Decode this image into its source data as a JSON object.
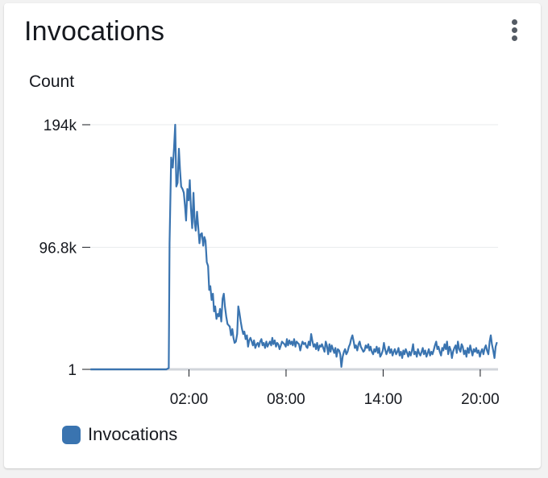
{
  "widget": {
    "title": "Invocations",
    "menu_icon": "more-vertical-icon"
  },
  "colors": {
    "series": "#3a74b0",
    "grid": "#e9ebed",
    "baseline": "#d1d5db"
  },
  "chart_data": {
    "type": "line",
    "title": "Invocations",
    "ylabel": "Count",
    "xlabel": "",
    "y_ticks": [
      {
        "label": "194k",
        "value": 194000
      },
      {
        "label": "96.8k",
        "value": 96800
      },
      {
        "label": "1",
        "value": 1
      }
    ],
    "x_ticks": [
      {
        "label": "02:00",
        "hour": 2
      },
      {
        "label": "08:00",
        "hour": 8
      },
      {
        "label": "14:00",
        "hour": 14
      },
      {
        "label": "20:00",
        "hour": 20
      }
    ],
    "xlim": [
      -4.1,
      21.1
    ],
    "ylim": [
      1,
      194000
    ],
    "grid": true,
    "legend_position": "bottom-left",
    "series": [
      {
        "name": "Invocations",
        "x": [
          -4.05,
          -2.5,
          -1.0,
          0.6,
          0.75,
          0.8,
          0.9,
          1.0,
          1.08,
          1.15,
          1.22,
          1.3,
          1.38,
          1.45,
          1.52,
          1.6,
          1.68,
          1.75,
          1.82,
          1.9,
          1.98,
          2.05,
          2.12,
          2.2,
          2.28,
          2.35,
          2.42,
          2.5,
          2.58,
          2.65,
          2.72,
          2.8,
          2.88,
          2.95,
          3.02,
          3.1,
          3.18,
          3.25,
          3.32,
          3.4,
          3.48,
          3.55,
          3.62,
          3.7,
          3.78,
          3.85,
          3.92,
          4.0,
          4.08,
          4.15,
          4.22,
          4.3,
          4.38,
          4.45,
          4.52,
          4.6,
          4.68,
          4.75,
          4.82,
          4.9,
          4.98,
          5.05,
          5.12,
          5.2,
          5.28,
          5.35,
          5.42,
          5.5,
          5.58,
          5.65,
          5.72,
          5.8,
          5.88,
          5.95,
          6.02,
          6.1,
          6.18,
          6.25,
          6.32,
          6.4,
          6.48,
          6.55,
          6.62,
          6.7,
          6.78,
          6.85,
          6.92,
          7.0,
          7.08,
          7.15,
          7.22,
          7.3,
          7.38,
          7.45,
          7.52,
          7.6,
          7.68,
          7.75,
          7.82,
          7.9,
          7.98,
          8.05,
          8.12,
          8.2,
          8.28,
          8.35,
          8.42,
          8.5,
          8.58,
          8.65,
          8.72,
          8.8,
          8.88,
          8.95,
          9.02,
          9.1,
          9.18,
          9.25,
          9.32,
          9.4,
          9.48,
          9.55,
          9.62,
          9.7,
          9.78,
          9.85,
          9.92,
          10.0,
          10.08,
          10.15,
          10.22,
          10.3,
          10.38,
          10.45,
          10.52,
          10.6,
          10.68,
          10.75,
          10.82,
          10.9,
          10.98,
          11.05,
          11.12,
          11.2,
          11.28,
          11.35,
          11.42,
          11.5,
          11.58,
          11.65,
          11.72,
          11.8,
          11.88,
          11.95,
          12.02,
          12.1,
          12.18,
          12.25,
          12.32,
          12.4,
          12.48,
          12.55,
          12.62,
          12.7,
          12.78,
          12.85,
          12.92,
          13.0,
          13.08,
          13.15,
          13.22,
          13.3,
          13.38,
          13.45,
          13.52,
          13.6,
          13.68,
          13.75,
          13.82,
          13.9,
          13.98,
          14.05,
          14.12,
          14.2,
          14.28,
          14.35,
          14.42,
          14.5,
          14.58,
          14.65,
          14.72,
          14.8,
          14.88,
          14.95,
          15.02,
          15.1,
          15.18,
          15.25,
          15.32,
          15.4,
          15.48,
          15.55,
          15.62,
          15.7,
          15.78,
          15.85,
          15.92,
          16.0,
          16.08,
          16.15,
          16.22,
          16.3,
          16.38,
          16.45,
          16.52,
          16.6,
          16.68,
          16.75,
          16.82,
          16.9,
          16.98,
          17.05,
          17.12,
          17.2,
          17.28,
          17.35,
          17.42,
          17.5,
          17.58,
          17.65,
          17.72,
          17.8,
          17.88,
          17.95,
          18.02,
          18.1,
          18.18,
          18.25,
          18.32,
          18.4,
          18.48,
          18.55,
          18.62,
          18.7,
          18.78,
          18.85,
          18.92,
          19.0,
          19.08,
          19.15,
          19.22,
          19.3,
          19.38,
          19.45,
          19.52,
          19.6,
          19.68,
          19.75,
          19.82,
          19.9,
          19.98,
          20.05,
          20.12,
          20.2,
          20.28,
          20.35,
          20.42,
          20.5,
          20.58,
          20.65,
          20.72,
          20.8,
          20.88,
          20.95,
          21.02
        ],
        "values": [
          1,
          1,
          1,
          1,
          1000,
          100000,
          168000,
          160000,
          176000,
          194000,
          145000,
          148000,
          175000,
          158000,
          145000,
          143000,
          140000,
          130000,
          118000,
          143000,
          134000,
          150000,
          128000,
          112000,
          140000,
          117000,
          110000,
          125000,
          112000,
          100000,
          107000,
          108000,
          98000,
          105000,
          102000,
          85000,
          82000,
          63000,
          66000,
          55000,
          60000,
          46000,
          50000,
          40000,
          44000,
          42000,
          48000,
          38000,
          56000,
          60000,
          50000,
          42000,
          36000,
          35000,
          34000,
          27000,
          32000,
          25000,
          21000,
          22000,
          28000,
          50000,
          45000,
          38000,
          32000,
          28000,
          30000,
          24000,
          27000,
          18000,
          23000,
          25000,
          22000,
          19000,
          23000,
          17000,
          20000,
          21000,
          18000,
          22000,
          24000,
          19000,
          21000,
          17000,
          22000,
          18000,
          20000,
          22000,
          19000,
          25000,
          20000,
          23000,
          18000,
          21000,
          20000,
          16000,
          19000,
          22000,
          21000,
          20000,
          18000,
          24000,
          19000,
          23000,
          20000,
          22000,
          19000,
          24000,
          18000,
          22000,
          21000,
          20000,
          15000,
          19000,
          22000,
          20000,
          21000,
          18000,
          17000,
          22000,
          19000,
          28000,
          23000,
          18000,
          20000,
          16000,
          21000,
          15000,
          19000,
          18000,
          20000,
          17000,
          14000,
          22000,
          19000,
          12000,
          20000,
          14000,
          19000,
          16000,
          13000,
          17000,
          10000,
          16000,
          15000,
          12000,
          2000,
          10000,
          14000,
          16000,
          12000,
          14000,
          18000,
          20000,
          24000,
          27000,
          22000,
          17000,
          19000,
          15000,
          20000,
          22000,
          18000,
          16000,
          14000,
          15000,
          19000,
          17000,
          20000,
          15000,
          18000,
          14000,
          12000,
          16000,
          14000,
          18000,
          13000,
          17000,
          10000,
          12000,
          15000,
          21000,
          16000,
          12000,
          15000,
          18000,
          13000,
          16000,
          11000,
          14000,
          16000,
          12000,
          14000,
          17000,
          11000,
          14000,
          9000,
          15000,
          12000,
          16000,
          13000,
          10000,
          14000,
          11000,
          15000,
          20000,
          12000,
          14000,
          10000,
          16000,
          13000,
          11000,
          14000,
          17000,
          12000,
          15000,
          10000,
          13000,
          16000,
          11000,
          14000,
          12000,
          15000,
          19000,
          22000,
          16000,
          18000,
          14000,
          11000,
          17000,
          15000,
          20000,
          16000,
          22000,
          12000,
          18000,
          15000,
          9000,
          14000,
          17000,
          19000,
          13000,
          22000,
          16000,
          14000,
          20000,
          18000,
          12000,
          15000,
          10000,
          17000,
          13000,
          19000,
          15000,
          11000,
          16000,
          14000,
          17000,
          13000,
          15000,
          10000,
          14000,
          16000,
          12000,
          17000,
          19000,
          15000,
          12000,
          22000,
          27000,
          20000,
          15000,
          9000,
          18000,
          21000
        ]
      }
    ]
  }
}
